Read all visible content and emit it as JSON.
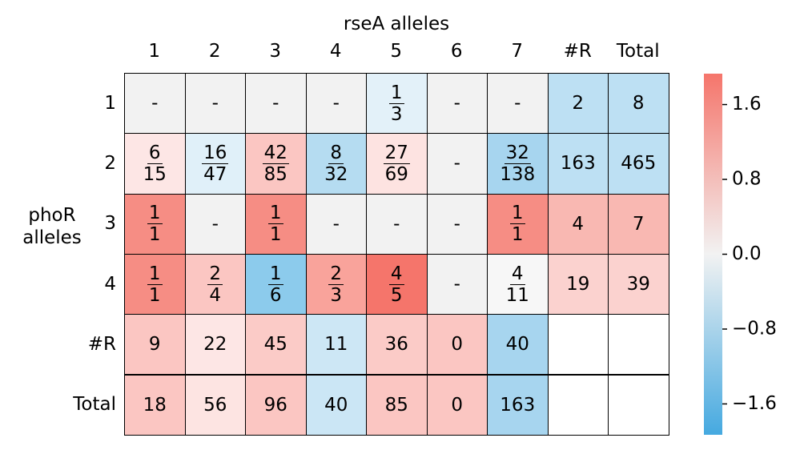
{
  "chart_data": {
    "type": "heatmap",
    "x_label": "rseA alleles",
    "y_label": "phoR\nalleles",
    "columns": [
      "1",
      "2",
      "3",
      "4",
      "5",
      "6",
      "7",
      "#R",
      "Total"
    ],
    "rows": [
      "1",
      "2",
      "3",
      "4",
      "#R",
      "Total"
    ],
    "cells": [
      [
        {
          "text": "-",
          "color": "#f2f2f2"
        },
        {
          "text": "-",
          "color": "#f2f2f2"
        },
        {
          "text": "-",
          "color": "#f2f2f2"
        },
        {
          "text": "-",
          "color": "#f2f2f2"
        },
        {
          "num": 1,
          "den": 3,
          "color": "#e3f1f9"
        },
        {
          "text": "-",
          "color": "#f2f2f2"
        },
        {
          "text": "-",
          "color": "#f2f2f2"
        },
        {
          "value": 2,
          "color": "#bde0f3"
        },
        {
          "value": 8,
          "color": "#bde0f3"
        }
      ],
      [
        {
          "num": 6,
          "den": 15,
          "color": "#fde6e5"
        },
        {
          "num": 16,
          "den": 47,
          "color": "#e0f0f9"
        },
        {
          "num": 42,
          "den": 85,
          "color": "#fbc6c2"
        },
        {
          "num": 8,
          "den": 32,
          "color": "#b5dcf1"
        },
        {
          "num": 27,
          "den": 69,
          "color": "#fde3e1"
        },
        {
          "text": "-",
          "color": "#f2f2f2"
        },
        {
          "num": 32,
          "den": 138,
          "color": "#a7d5ef"
        },
        {
          "value": 163,
          "color": "#bde0f3"
        },
        {
          "value": 465,
          "color": "#bde0f3"
        }
      ],
      [
        {
          "num": 1,
          "den": 1,
          "color": "#f68d84"
        },
        {
          "text": "-",
          "color": "#f2f2f2"
        },
        {
          "num": 1,
          "den": 1,
          "color": "#f68d84"
        },
        {
          "text": "-",
          "color": "#f2f2f2"
        },
        {
          "text": "-",
          "color": "#f2f2f2"
        },
        {
          "text": "-",
          "color": "#f2f2f2"
        },
        {
          "num": 1,
          "den": 1,
          "color": "#f68d84"
        },
        {
          "value": 4,
          "color": "#f9b8b2"
        },
        {
          "value": 7,
          "color": "#f9b8b2"
        }
      ],
      [
        {
          "num": 1,
          "den": 1,
          "color": "#f68d84"
        },
        {
          "num": 2,
          "den": 4,
          "color": "#fbc6c2"
        },
        {
          "num": 1,
          "den": 6,
          "color": "#8ccbec"
        },
        {
          "num": 2,
          "den": 3,
          "color": "#f9a39b"
        },
        {
          "num": 4,
          "den": 5,
          "color": "#f5756b"
        },
        {
          "text": "-",
          "color": "#f2f2f2"
        },
        {
          "num": 4,
          "den": 11,
          "color": "#f7f7f7"
        },
        {
          "value": 19,
          "color": "#fbd2cf"
        },
        {
          "value": 39,
          "color": "#fbd2cf"
        }
      ],
      [
        {
          "value": 9,
          "color": "#fbc6c2"
        },
        {
          "value": 22,
          "color": "#fde6e5"
        },
        {
          "value": 45,
          "color": "#fbcbc7"
        },
        {
          "value": 11,
          "color": "#cde7f5"
        },
        {
          "value": 36,
          "color": "#fbcbc7"
        },
        {
          "value": 0,
          "color": "#fbc6c2"
        },
        {
          "value": 40,
          "color": "#a7d5ef"
        },
        {
          "color": "#ffffff"
        },
        {
          "color": "#ffffff"
        }
      ],
      [
        {
          "value": 18,
          "color": "#fbc6c2"
        },
        {
          "value": 56,
          "color": "#fde4e2"
        },
        {
          "value": 96,
          "color": "#fbc6c2"
        },
        {
          "value": 40,
          "color": "#cbe6f5"
        },
        {
          "value": 85,
          "color": "#fbc6c2"
        },
        {
          "value": 0,
          "color": "#fbc6c2"
        },
        {
          "value": 163,
          "color": "#a7d5ef"
        },
        {
          "color": "#ffffff"
        },
        {
          "color": "#ffffff"
        }
      ]
    ],
    "colorbar": {
      "colormap": [
        "#45a9e0",
        "#f2f2f2",
        "#f5756b"
      ],
      "ylim": [
        -1.93,
        1.93
      ],
      "yticks": [
        {
          "value": -1.6,
          "label": "−1.6"
        },
        {
          "value": -0.8,
          "label": "−0.8"
        },
        {
          "value": 0,
          "label": "0.0"
        },
        0.8,
        1.6
      ]
    }
  }
}
